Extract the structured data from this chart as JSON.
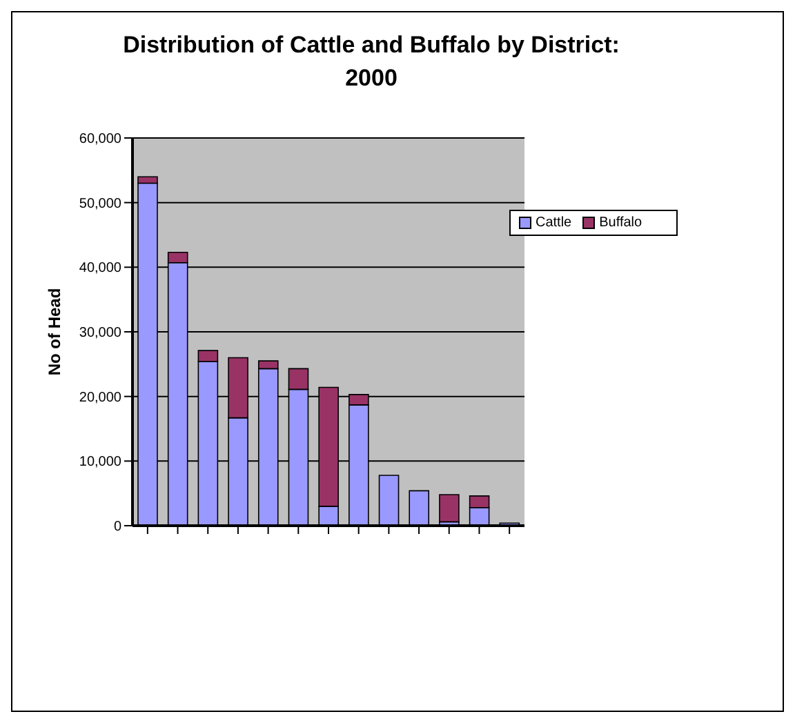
{
  "chart_data": {
    "type": "bar",
    "title": "Distribution of Cattle and Buffalo by District: 2000",
    "ylabel": "No of Head",
    "categories": [
      null,
      null,
      null,
      null,
      null,
      null,
      null,
      null,
      null,
      null,
      null,
      null,
      null
    ],
    "stacked": true,
    "series": [
      {
        "name": "Cattle",
        "color": "#9999ff",
        "values": [
          53000,
          40700,
          25400,
          16700,
          24300,
          21100,
          3000,
          18700,
          7800,
          5400,
          600,
          2800,
          400
        ]
      },
      {
        "name": "Buffalo",
        "color": "#993366",
        "values": [
          1000,
          1600,
          1700,
          9300,
          1200,
          3200,
          18400,
          1600,
          0,
          0,
          4200,
          1800,
          null
        ]
      }
    ],
    "ylim": [
      0,
      60000
    ],
    "yticks": [
      {
        "value": 0,
        "label": "0"
      },
      {
        "value": 10000,
        "label": "10,000"
      },
      {
        "value": 20000,
        "label": "20,000"
      },
      {
        "value": 30000,
        "label": "30,000"
      },
      {
        "value": 40000,
        "label": "40,000"
      },
      {
        "value": 50000,
        "label": "50,000"
      },
      {
        "value": 60000,
        "label": "60,000"
      }
    ],
    "grid": "y",
    "legend": "top right"
  }
}
